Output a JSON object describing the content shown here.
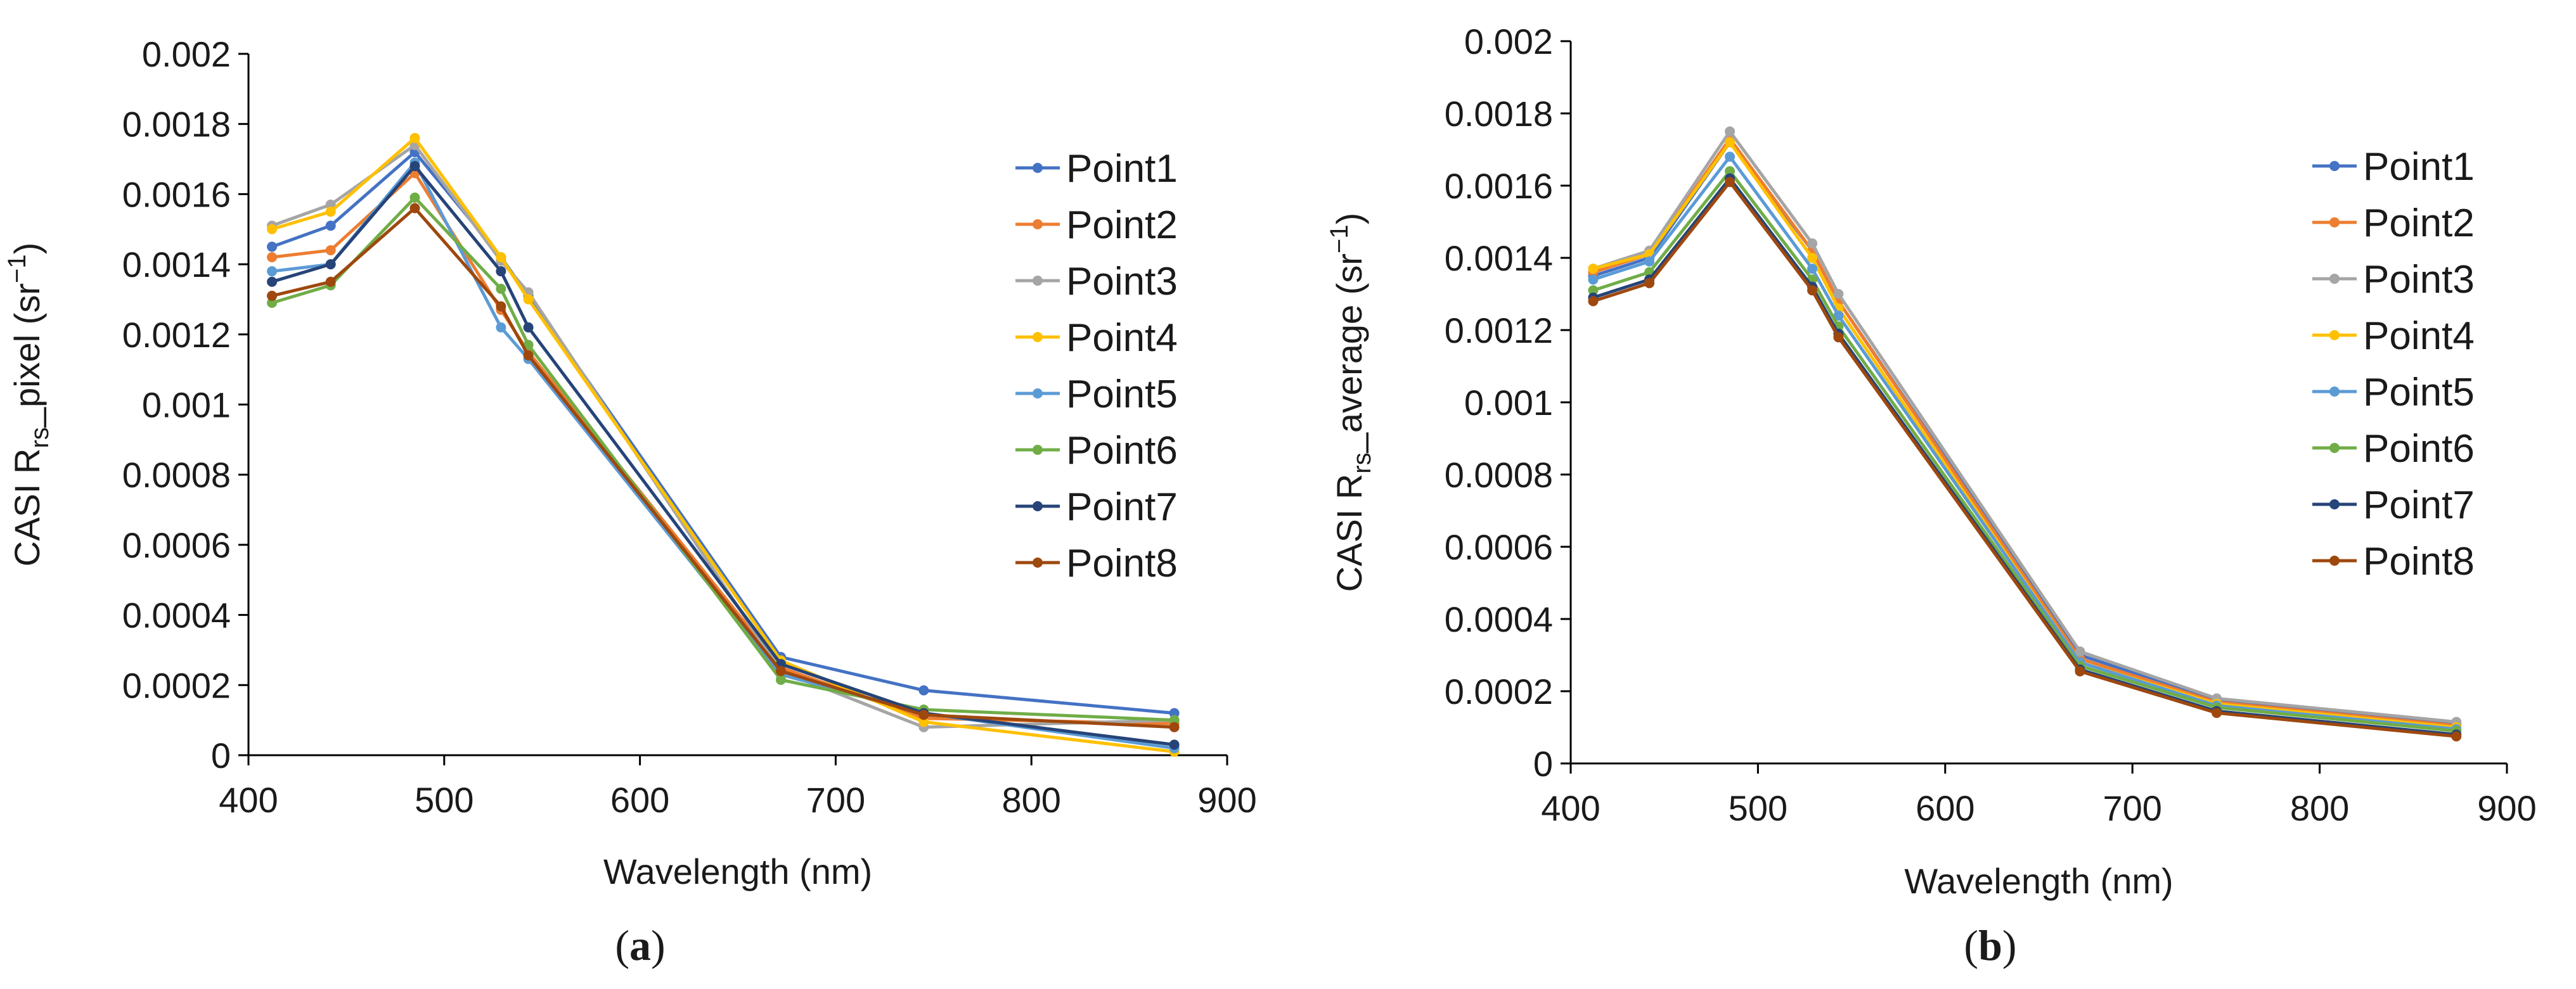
{
  "chart_data": [
    {
      "type": "line",
      "caption_left": "(",
      "caption_letter": "a",
      "caption_right": ")",
      "xlabel": "Wavelength (nm)",
      "ylabel_main": "CASI R",
      "ylabel_sub": "rs",
      "ylabel_rest": "_pixel (sr",
      "ylabel_sup": "−1",
      "ylabel_end": ")",
      "xlim": [
        400,
        900
      ],
      "ylim": [
        0,
        0.002
      ],
      "x_ticks": [
        "400",
        "500",
        "600",
        "700",
        "800",
        "900"
      ],
      "y_ticks": [
        "0",
        "0.0002",
        "0.0004",
        "0.0006",
        "0.0008",
        "0.001",
        "0.0012",
        "0.0014",
        "0.0016",
        "0.0018",
        "0.002"
      ],
      "x": [
        412,
        442,
        485,
        529,
        543,
        672,
        745,
        873
      ],
      "series": [
        {
          "name": "Point1",
          "color": "#4472c4",
          "values": [
            0.00145,
            0.00151,
            0.00172,
            0.00142,
            0.00131,
            0.00028,
            0.000185,
            0.00012
          ]
        },
        {
          "name": "Point2",
          "color": "#ed7d31",
          "values": [
            0.00142,
            0.00144,
            0.00166,
            0.00127,
            0.00115,
            0.00025,
            0.000105,
            9e-05
          ]
        },
        {
          "name": "Point3",
          "color": "#a5a5a5",
          "values": [
            0.00151,
            0.00157,
            0.00174,
            0.00141,
            0.00132,
            0.00024,
            8e-05,
            0.0001
          ]
        },
        {
          "name": "Point4",
          "color": "#ffc000",
          "values": [
            0.0015,
            0.00155,
            0.00176,
            0.00142,
            0.0013,
            0.00027,
            9.5e-05,
            1e-05
          ]
        },
        {
          "name": "Point5",
          "color": "#5b9bd5",
          "values": [
            0.00138,
            0.0014,
            0.00169,
            0.00122,
            0.00113,
            0.00023,
            0.00012,
            2e-05
          ]
        },
        {
          "name": "Point6",
          "color": "#70ad47",
          "values": [
            0.00129,
            0.00134,
            0.00159,
            0.00133,
            0.00117,
            0.000215,
            0.00013,
            0.0001
          ]
        },
        {
          "name": "Point7",
          "color": "#264478",
          "values": [
            0.00135,
            0.0014,
            0.00168,
            0.00138,
            0.00122,
            0.00026,
            0.00012,
            3e-05
          ]
        },
        {
          "name": "Point8",
          "color": "#9e480e",
          "values": [
            0.00131,
            0.00135,
            0.00156,
            0.00128,
            0.00114,
            0.00024,
            0.000115,
            8e-05
          ]
        }
      ]
    },
    {
      "type": "line",
      "caption_left": "(",
      "caption_letter": "b",
      "caption_right": ")",
      "xlabel": "Wavelength (nm)",
      "ylabel_main": "CASI R",
      "ylabel_sub": "rs",
      "ylabel_rest": "_average (sr",
      "ylabel_sup": "−1",
      "ylabel_end": ")",
      "xlim": [
        400,
        900
      ],
      "ylim": [
        0,
        0.002
      ],
      "x_ticks": [
        "400",
        "500",
        "600",
        "700",
        "800",
        "900"
      ],
      "y_ticks": [
        "0",
        "0.0002",
        "0.0004",
        "0.0006",
        "0.0008",
        "0.001",
        "0.0012",
        "0.0014",
        "0.0016",
        "0.0018",
        "0.002"
      ],
      "x": [
        412,
        442,
        485,
        529,
        543,
        672,
        745,
        873
      ],
      "series": [
        {
          "name": "Point1",
          "color": "#4472c4",
          "values": [
            0.00135,
            0.0014,
            0.00172,
            0.00142,
            0.00128,
            0.0003,
            0.000175,
            0.00011
          ]
        },
        {
          "name": "Point2",
          "color": "#ed7d31",
          "values": [
            0.00136,
            0.00141,
            0.00173,
            0.00142,
            0.00128,
            0.00029,
            0.00017,
            0.000105
          ]
        },
        {
          "name": "Point3",
          "color": "#a5a5a5",
          "values": [
            0.00137,
            0.00142,
            0.00175,
            0.00144,
            0.0013,
            0.00031,
            0.00018,
            0.000115
          ]
        },
        {
          "name": "Point4",
          "color": "#ffc000",
          "values": [
            0.00137,
            0.00141,
            0.00172,
            0.0014,
            0.00126,
            0.00028,
            0.000165,
            0.0001
          ]
        },
        {
          "name": "Point5",
          "color": "#5b9bd5",
          "values": [
            0.00134,
            0.00139,
            0.00168,
            0.00137,
            0.00124,
            0.00028,
            0.00016,
            9.5e-05
          ]
        },
        {
          "name": "Point6",
          "color": "#70ad47",
          "values": [
            0.00131,
            0.00136,
            0.00164,
            0.00134,
            0.00121,
            0.00027,
            0.000155,
            9e-05
          ]
        },
        {
          "name": "Point7",
          "color": "#264478",
          "values": [
            0.00129,
            0.00134,
            0.00162,
            0.00132,
            0.00119,
            0.00026,
            0.000145,
            8e-05
          ]
        },
        {
          "name": "Point8",
          "color": "#9e480e",
          "values": [
            0.00128,
            0.00133,
            0.00161,
            0.00131,
            0.00118,
            0.000255,
            0.00014,
            7.5e-05
          ]
        }
      ]
    }
  ]
}
